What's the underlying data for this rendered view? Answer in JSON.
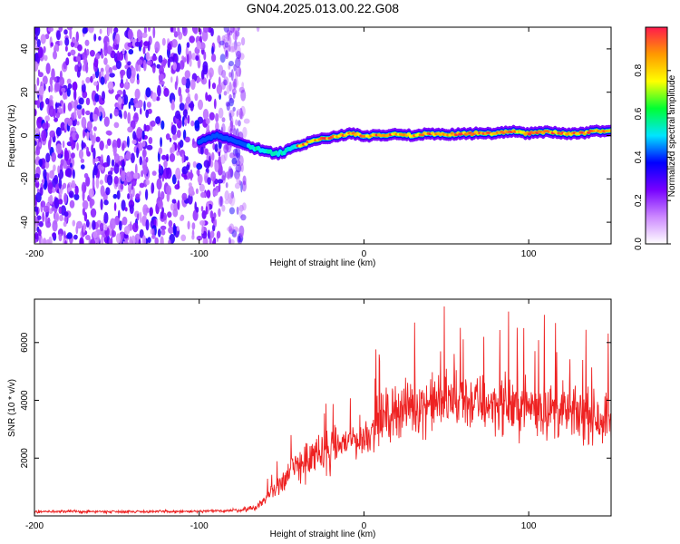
{
  "title": "GN04.2025.013.00.22.G08",
  "colors": {
    "snr_line": "#ee2222",
    "colormap": [
      "#ffffff",
      "#cc88ff",
      "#7700ff",
      "#0000ff",
      "#00e5ff",
      "#00ff33",
      "#ffff00",
      "#ff9900",
      "#ff1a4d"
    ]
  },
  "chart_data": [
    {
      "type": "heatmap",
      "xlabel": "Height of straight line (km)",
      "ylabel": "Frequency (Hz)",
      "xlim": [
        -200,
        150
      ],
      "ylim": [
        -50,
        50
      ],
      "x_ticks": [
        -200,
        -100,
        0,
        100
      ],
      "y_ticks": [
        -40,
        -20,
        0,
        20,
        40
      ],
      "colorbar": {
        "label": "Normalized spectral amplitude",
        "range": [
          0,
          1
        ],
        "ticks": [
          0.0,
          0.2,
          0.4,
          0.6,
          0.8
        ]
      },
      "noise_region_x": [
        -200,
        -72
      ],
      "ridge_centre_frequency": {
        "x": [
          -100,
          -90,
          -80,
          -70,
          -60,
          -55,
          -50,
          -45,
          -40,
          -30,
          -20,
          -10,
          0,
          10,
          20,
          30,
          40,
          50,
          60,
          70,
          80,
          90,
          100,
          110,
          120,
          130,
          140,
          150
        ],
        "y": [
          -3,
          0,
          -2,
          -5,
          -7,
          -8,
          -8,
          -6,
          -5,
          -2,
          -1,
          1,
          0,
          0,
          1,
          0,
          1,
          0,
          1,
          1,
          1,
          2,
          1,
          2,
          1,
          1,
          2,
          2
        ]
      }
    },
    {
      "type": "line",
      "xlabel": "Height of straight line (km)",
      "ylabel": "SNR (10 * v/v)",
      "xlim": [
        -200,
        150
      ],
      "ylim": [
        0,
        7500
      ],
      "x_ticks": [
        -200,
        -100,
        0,
        100
      ],
      "y_ticks": [
        2000,
        4000,
        6000
      ],
      "series": [
        {
          "x": [
            -200,
            -150,
            -100,
            -75,
            -65,
            -60,
            -50,
            -40,
            -30,
            -20,
            -10,
            0,
            10,
            20,
            30,
            40,
            50,
            60,
            70,
            80,
            90,
            100,
            110,
            120,
            130,
            140,
            150
          ],
          "y": [
            150,
            150,
            150,
            200,
            300,
            600,
            1200,
            1800,
            2000,
            2300,
            2600,
            2700,
            3300,
            3700,
            3800,
            3900,
            4000,
            4000,
            3900,
            3900,
            3800,
            3800,
            3700,
            3600,
            3500,
            3400,
            3400
          ]
        }
      ]
    }
  ]
}
